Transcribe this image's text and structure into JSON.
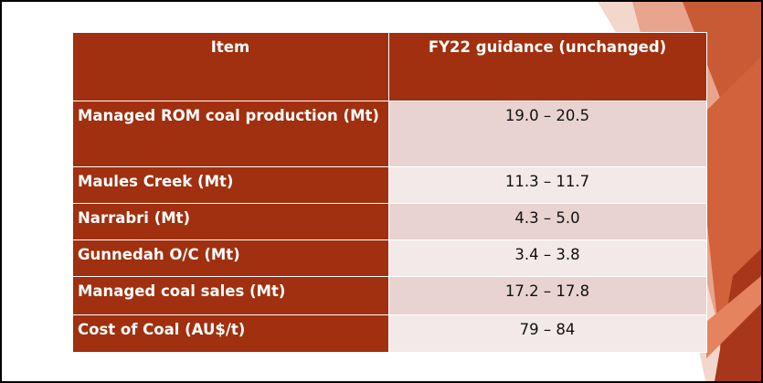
{
  "colors": {
    "header_bg": "#a0300f",
    "label_bg": "#a0300f",
    "row_dark": "#e8d3d1",
    "row_light": "#f3e9e8"
  },
  "table": {
    "headers": [
      "Item",
      "FY22 guidance (unchanged)"
    ],
    "rows": [
      {
        "item": "Managed ROM coal production (Mt)",
        "guidance": "19.0 – 20.5"
      },
      {
        "item": "Maules Creek (Mt)",
        "guidance": "11.3 – 11.7"
      },
      {
        "item": "Narrabri (Mt)",
        "guidance": "4.3 – 5.0"
      },
      {
        "item": "Gunnedah O/C (Mt)",
        "guidance": "3.4 – 3.8"
      },
      {
        "item": "Managed coal sales (Mt)",
        "guidance": "17.2 – 17.8"
      },
      {
        "item": "Cost of Coal (AU$/t)",
        "guidance": "79 – 84"
      }
    ]
  }
}
